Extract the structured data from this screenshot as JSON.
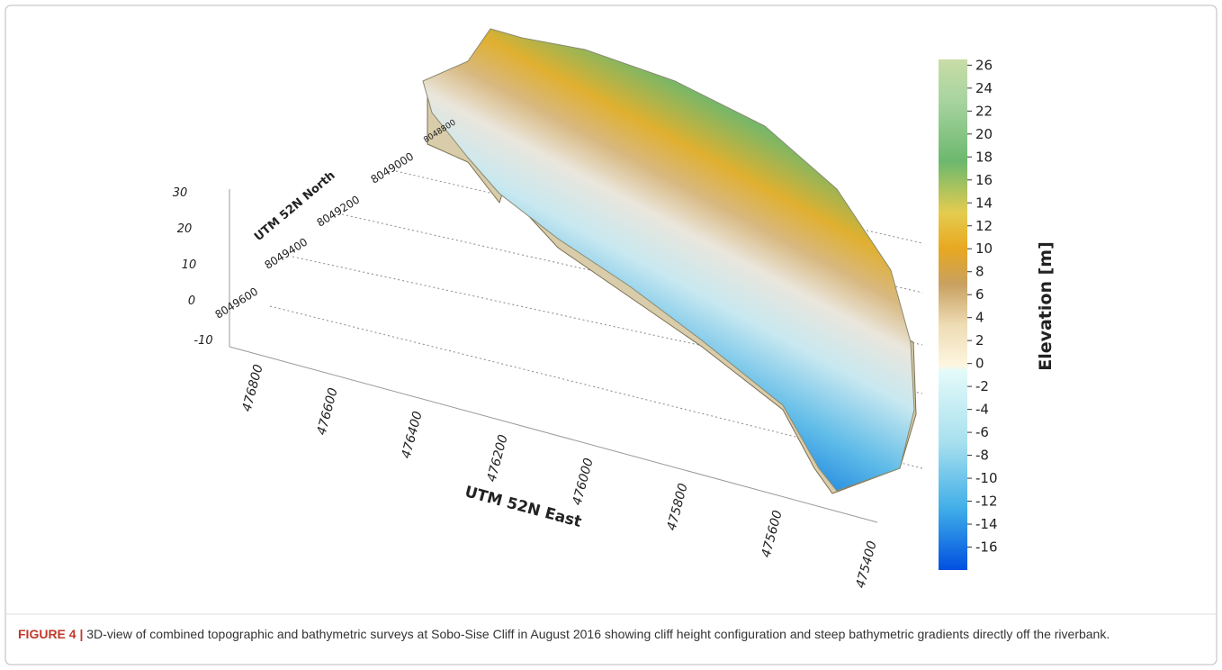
{
  "figure": {
    "x_axis": {
      "label": "UTM 52N East",
      "ticks": [
        476800,
        476600,
        476400,
        476200,
        476000,
        475800,
        475600,
        475400
      ]
    },
    "y_axis": {
      "label": "UTM 52N North",
      "ticks": [
        8049600,
        8049400,
        8049200,
        8049000,
        8048800
      ]
    },
    "z_axis": {
      "ticks": [
        30,
        20,
        10,
        0,
        -10
      ]
    },
    "colorbar": {
      "label": "Elevation [m]",
      "lim": [
        -18,
        26.5
      ],
      "ticks": [
        26,
        24,
        22,
        20,
        18,
        16,
        14,
        12,
        10,
        8,
        6,
        4,
        2,
        0,
        -2,
        -4,
        -6,
        -8,
        -10,
        -12,
        -14,
        -16
      ]
    }
  },
  "caption": {
    "label": "FIGURE 4 |",
    "text": "3D-view of combined topographic and bathymetric surveys at Sobo-Sise Cliff in August 2016 showing cliff height configuration and steep bathymetric gradients directly off the riverbank."
  }
}
